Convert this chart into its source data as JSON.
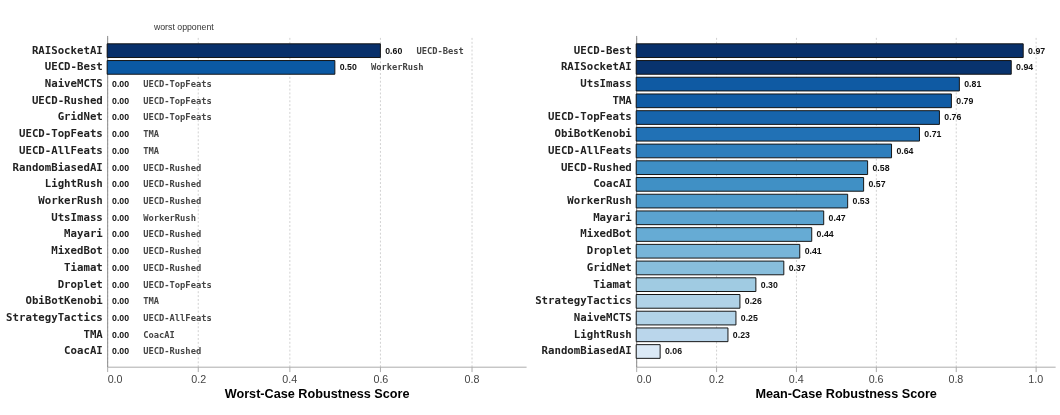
{
  "chart_data": [
    {
      "type": "bar",
      "orientation": "horizontal",
      "xlabel": "Worst-Case Robustness Score",
      "categories": [
        "RAISocketAI",
        "UECD-Best",
        "NaiveMCTS",
        "UECD-Rushed",
        "GridNet",
        "UECD-TopFeats",
        "UECD-AllFeats",
        "RandomBiasedAI",
        "LightRush",
        "WorkerRush",
        "UtsImass",
        "Mayari",
        "MixedBot",
        "Tiamat",
        "Droplet",
        "ObiBotKenobi",
        "StrategyTactics",
        "TMA",
        "CoacAI"
      ],
      "values": [
        0.6,
        0.5,
        0,
        0,
        0,
        0,
        0,
        0,
        0,
        0,
        0,
        0,
        0,
        0,
        0,
        0,
        0,
        0,
        0
      ],
      "value_labels": [
        "0.60",
        "0.50",
        "0.00",
        "0.00",
        "0.00",
        "0.00",
        "0.00",
        "0.00",
        "0.00",
        "0.00",
        "0.00",
        "0.00",
        "0.00",
        "0.00",
        "0.00",
        "0.00",
        "0.00",
        "0.00",
        "0.00"
      ],
      "colors": [
        "#08306b",
        "#0b59a4",
        "#2171b5",
        "#2171b5",
        "#2171b5",
        "#2171b5",
        "#2171b5",
        "#2171b5",
        "#2171b5",
        "#2171b5",
        "#2171b5",
        "#2171b5",
        "#2171b5",
        "#2171b5",
        "#2171b5",
        "#2171b5",
        "#2171b5",
        "#2171b5",
        "#2171b5"
      ],
      "xlim": [
        0,
        0.92
      ],
      "xticks": [
        {
          "value": 0,
          "label": "0.0"
        },
        {
          "value": 0.2,
          "label": "0.2"
        },
        {
          "value": 0.4,
          "label": "0.4"
        },
        {
          "value": 0.6,
          "label": "0.6"
        },
        {
          "value": 0.8,
          "label": "0.8"
        }
      ],
      "grid": "x",
      "annotations": [
        "worst opponent",
        "UECD-Best",
        "WorkerRush",
        "UECD-TopFeats",
        "UECD-TopFeats",
        "UECD-TopFeats",
        "TMA",
        "TMA",
        "UECD-Rushed",
        "UECD-Rushed",
        "UECD-Rushed",
        "WorkerRush",
        "UECD-Rushed",
        "UECD-Rushed",
        "UECD-Rushed",
        "UECD-TopFeats",
        "TMA",
        "UECD-AllFeats",
        "CoacAI",
        "UECD-Rushed"
      ]
    },
    {
      "type": "bar",
      "orientation": "horizontal",
      "xlabel": "Mean-Case Robustness Score",
      "categories": [
        "UECD-Best",
        "RAISocketAI",
        "UtsImass",
        "TMA",
        "UECD-TopFeats",
        "ObiBotKenobi",
        "UECD-AllFeats",
        "UECD-Rushed",
        "CoacAI",
        "WorkerRush",
        "Mayari",
        "MixedBot",
        "Droplet",
        "GridNet",
        "Tiamat",
        "StrategyTactics",
        "NaiveMCTS",
        "LightRush",
        "RandomBiasedAI"
      ],
      "values": [
        0.97,
        0.94,
        0.81,
        0.79,
        0.76,
        0.71,
        0.64,
        0.58,
        0.57,
        0.53,
        0.47,
        0.44,
        0.41,
        0.37,
        0.3,
        0.26,
        0.25,
        0.23,
        0.06
      ],
      "value_labels": [
        "0.97",
        "0.94",
        "0.81",
        "0.79",
        "0.76",
        "0.71",
        "0.64",
        "0.58",
        "0.57",
        "0.53",
        "0.47",
        "0.44",
        "0.41",
        "0.37",
        "0.30",
        "0.26",
        "0.25",
        "0.23",
        "0.06"
      ],
      "colors": [
        "#08306b",
        "#08336e",
        "#0f5aa3",
        "#105ba4",
        "#1764ab",
        "#2171b5",
        "#2e7ebc",
        "#3f8fc5",
        "#4090c5",
        "#4c99ca",
        "#5ba3d0",
        "#66abd4",
        "#77b5d9",
        "#88bedc",
        "#a0cbe2",
        "#b0d2e7",
        "#b2d3e8",
        "#bad6eb",
        "#dbe9f6"
      ],
      "xlim": [
        0,
        1.05
      ],
      "xticks": [
        {
          "value": 0,
          "label": "0.0"
        },
        {
          "value": 0.2,
          "label": "0.2"
        },
        {
          "value": 0.4,
          "label": "0.4"
        },
        {
          "value": 0.6,
          "label": "0.6"
        },
        {
          "value": 0.8,
          "label": "0.8"
        },
        {
          "value": 1.0,
          "label": "1.0"
        }
      ],
      "grid": "x"
    }
  ]
}
